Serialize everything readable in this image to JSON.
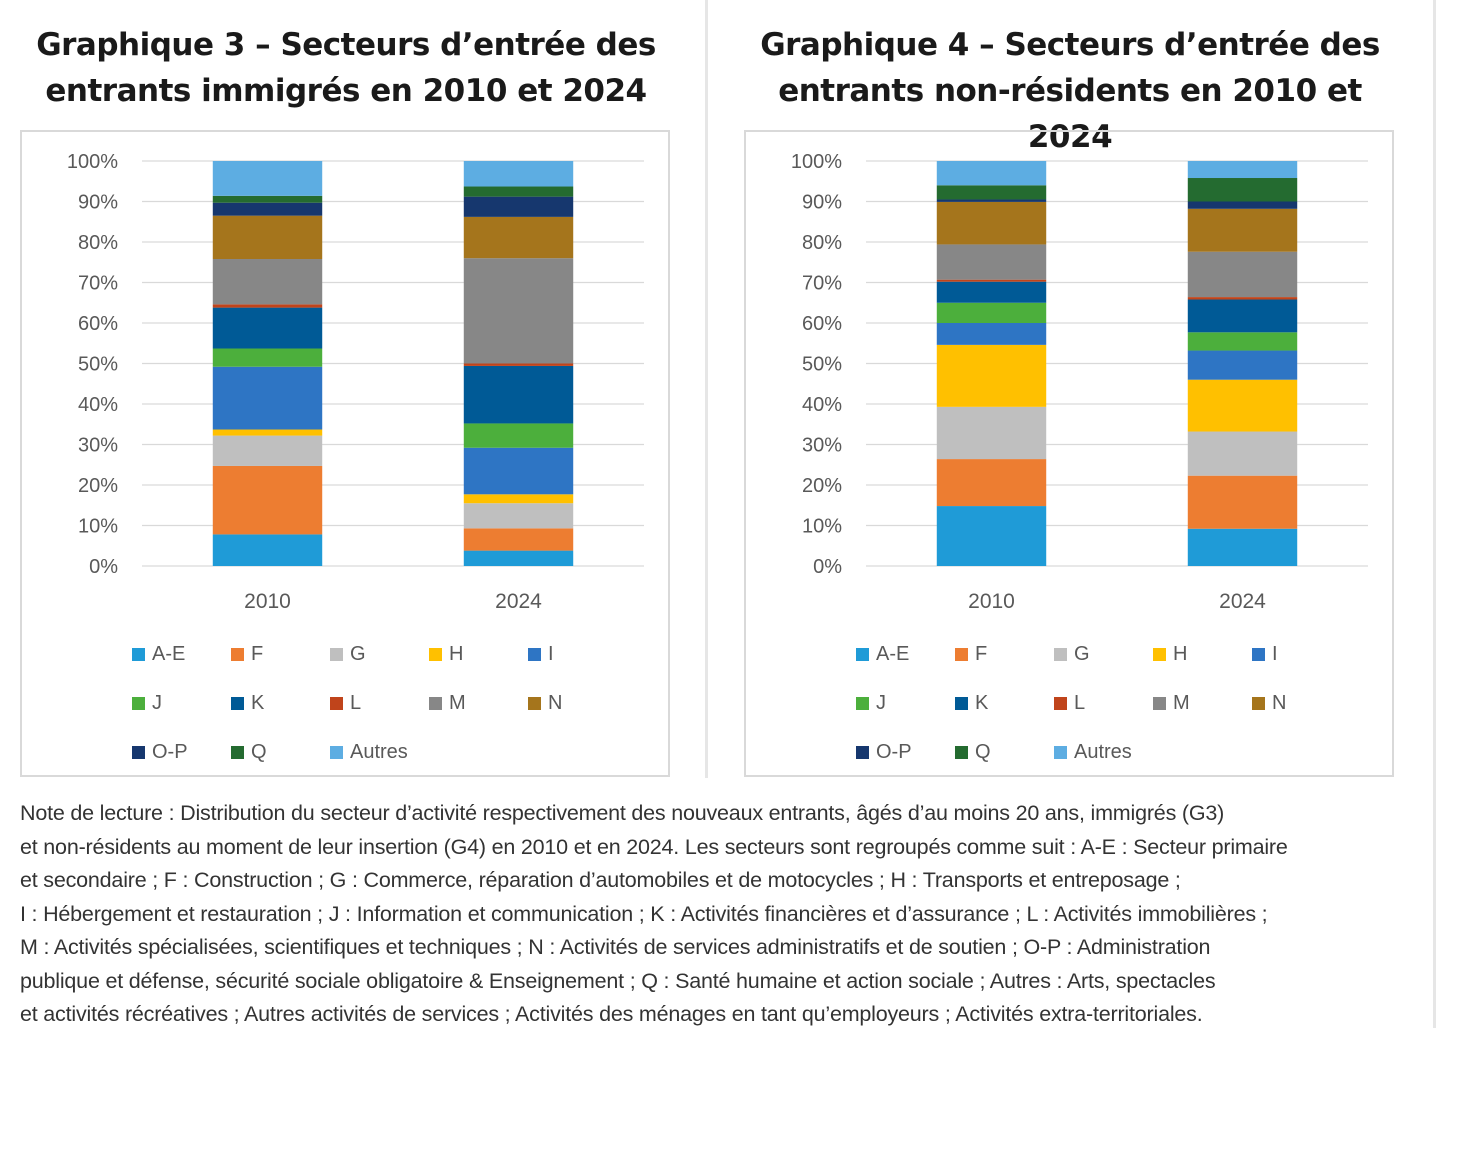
{
  "charts": [
    {
      "title_line1": "Graphique 3 – Secteurs d’entrée des",
      "title_line2": "entrants immigrés en 2010 et 2024"
    },
    {
      "title_line1": "Graphique 4 – Secteurs d’entrée des",
      "title_line2": "entrants non-résidents en 2010 et 2024"
    }
  ],
  "colors": {
    "A-E": "#1F9BD7",
    "F": "#ED7D31",
    "G": "#BFBFBF",
    "H": "#FFC000",
    "I": "#2E75C4",
    "J": "#4CAF3C",
    "K": "#005A96",
    "L": "#C0441B",
    "M": "#878787",
    "N": "#A5751C",
    "O-P": "#16376E",
    "Q": "#246B30",
    "Autres": "#5DADE2"
  },
  "chart_data": [
    {
      "type": "bar",
      "stacked": true,
      "categories": [
        "2010",
        "2024"
      ],
      "yticks": [
        "0%",
        "10%",
        "20%",
        "30%",
        "40%",
        "50%",
        "60%",
        "70%",
        "80%",
        "90%",
        "100%"
      ],
      "ylim": [
        0,
        100
      ],
      "grid": true,
      "legend_position": "bottom",
      "series": [
        {
          "name": "A-E",
          "values": [
            7.8,
            3.8
          ]
        },
        {
          "name": "F",
          "values": [
            16.9,
            5.5
          ]
        },
        {
          "name": "G",
          "values": [
            7.5,
            6.2
          ]
        },
        {
          "name": "H",
          "values": [
            1.5,
            2.2
          ]
        },
        {
          "name": "I",
          "values": [
            15.5,
            11.5
          ]
        },
        {
          "name": "J",
          "values": [
            4.5,
            6.0
          ]
        },
        {
          "name": "K",
          "values": [
            10.1,
            14.2
          ]
        },
        {
          "name": "L",
          "values": [
            0.8,
            0.6
          ]
        },
        {
          "name": "M",
          "values": [
            11.2,
            26.0
          ]
        },
        {
          "name": "N",
          "values": [
            10.7,
            10.2
          ]
        },
        {
          "name": "O-P",
          "values": [
            3.2,
            5.0
          ]
        },
        {
          "name": "Q",
          "values": [
            1.7,
            2.5
          ]
        },
        {
          "name": "Autres",
          "values": [
            8.6,
            6.3
          ]
        }
      ]
    },
    {
      "type": "bar",
      "stacked": true,
      "categories": [
        "2010",
        "2024"
      ],
      "yticks": [
        "0%",
        "10%",
        "20%",
        "30%",
        "40%",
        "50%",
        "60%",
        "70%",
        "80%",
        "90%",
        "100%"
      ],
      "ylim": [
        0,
        100
      ],
      "grid": true,
      "legend_position": "bottom",
      "series": [
        {
          "name": "A-E",
          "values": [
            14.8,
            9.2
          ]
        },
        {
          "name": "F",
          "values": [
            11.6,
            13.1
          ]
        },
        {
          "name": "G",
          "values": [
            12.9,
            10.9
          ]
        },
        {
          "name": "H",
          "values": [
            15.3,
            12.8
          ]
        },
        {
          "name": "I",
          "values": [
            5.4,
            7.2
          ]
        },
        {
          "name": "J",
          "values": [
            5.0,
            4.5
          ]
        },
        {
          "name": "K",
          "values": [
            5.2,
            8.1
          ]
        },
        {
          "name": "L",
          "values": [
            0.5,
            0.6
          ]
        },
        {
          "name": "M",
          "values": [
            8.7,
            11.2
          ]
        },
        {
          "name": "N",
          "values": [
            10.5,
            10.6
          ]
        },
        {
          "name": "O-P",
          "values": [
            0.6,
            1.8
          ]
        },
        {
          "name": "Q",
          "values": [
            3.5,
            5.8
          ]
        },
        {
          "name": "Autres",
          "values": [
            6.0,
            4.2
          ]
        }
      ]
    }
  ],
  "note": {
    "lines": [
      "Note de lecture : Distribution du secteur d’activité respectivement des nouveaux entrants, âgés d’au moins 20 ans, immigrés (G3)",
      "et non-résidents au moment de leur insertion (G4) en 2010 et en 2024. Les secteurs sont regroupés comme suit : A-E : Secteur primaire",
      "et secondaire ; F : Construction ; G : Commerce, réparation d’automobiles et de motocycles ; H : Transports et entreposage ;",
      "I : Hébergement et restauration ; J : Information et communication ; K : Activités financières et d’assurance ; L : Activités immobilières ;",
      "M : Activités spécialisées, scientifiques et techniques ; N : Activités de services administratifs et de soutien ; O-P : Administration",
      "publique et défense, sécurité sociale obligatoire & Enseignement ; Q : Santé humaine et action sociale ; Autres : Arts, spectacles",
      "et activités récréatives ; Autres activités de services ; Activités des ménages en tant qu’employeurs ; Activités extra-territoriales."
    ]
  }
}
